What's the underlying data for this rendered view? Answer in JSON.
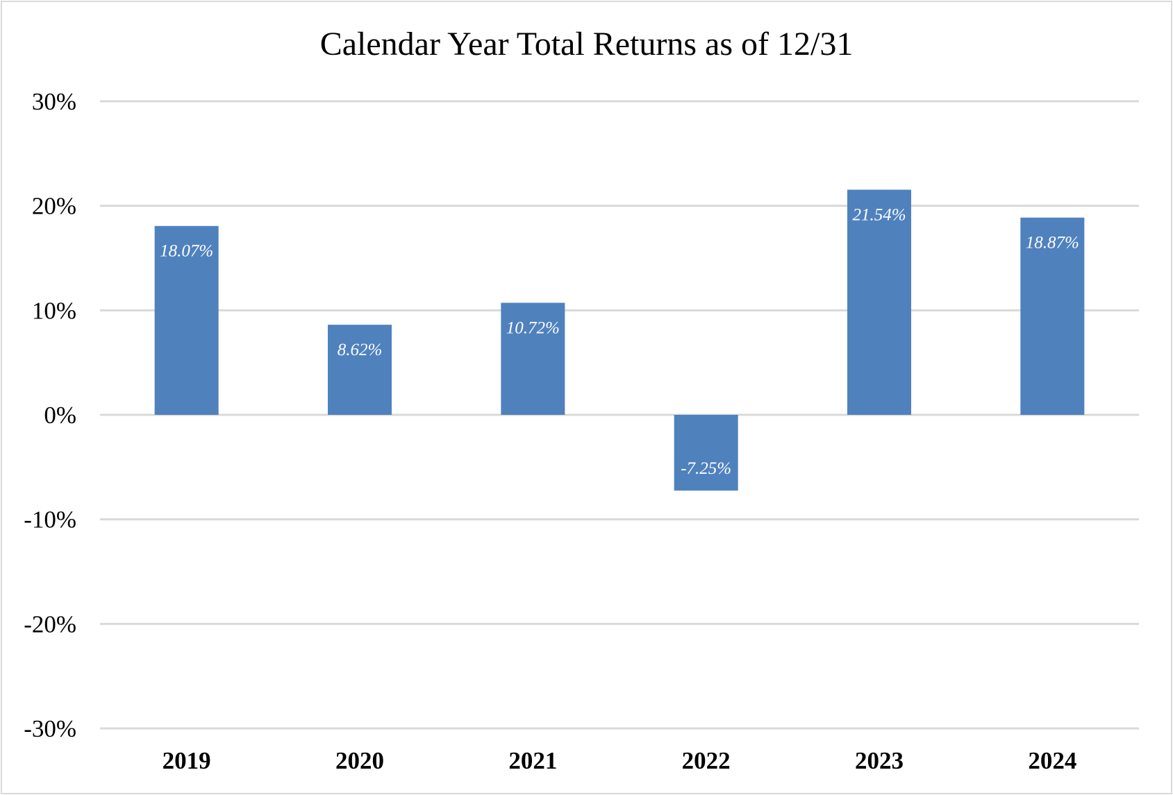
{
  "chart_data": {
    "type": "bar",
    "title": "Calendar Year Total Returns as of 12/31",
    "xlabel": "",
    "ylabel": "",
    "categories": [
      "2019",
      "2020",
      "2021",
      "2022",
      "2023",
      "2024"
    ],
    "values": [
      18.07,
      8.62,
      10.72,
      -7.25,
      21.54,
      18.87
    ],
    "data_labels": [
      "18.07%",
      "8.62%",
      "10.72%",
      "-7.25%",
      "21.54%",
      "18.87%"
    ],
    "ylim": [
      -30,
      30
    ],
    "yticks": [
      30,
      20,
      10,
      0,
      -10,
      -20,
      -30
    ],
    "ytick_labels": [
      "30%",
      "20%",
      "10%",
      "0%",
      "-10%",
      "-20%",
      "-30%"
    ],
    "grid": true,
    "legend": "none",
    "colors": {
      "bar": "#4f81bd",
      "grid": "#d9d9d9",
      "data_label": "#ffffff"
    }
  }
}
